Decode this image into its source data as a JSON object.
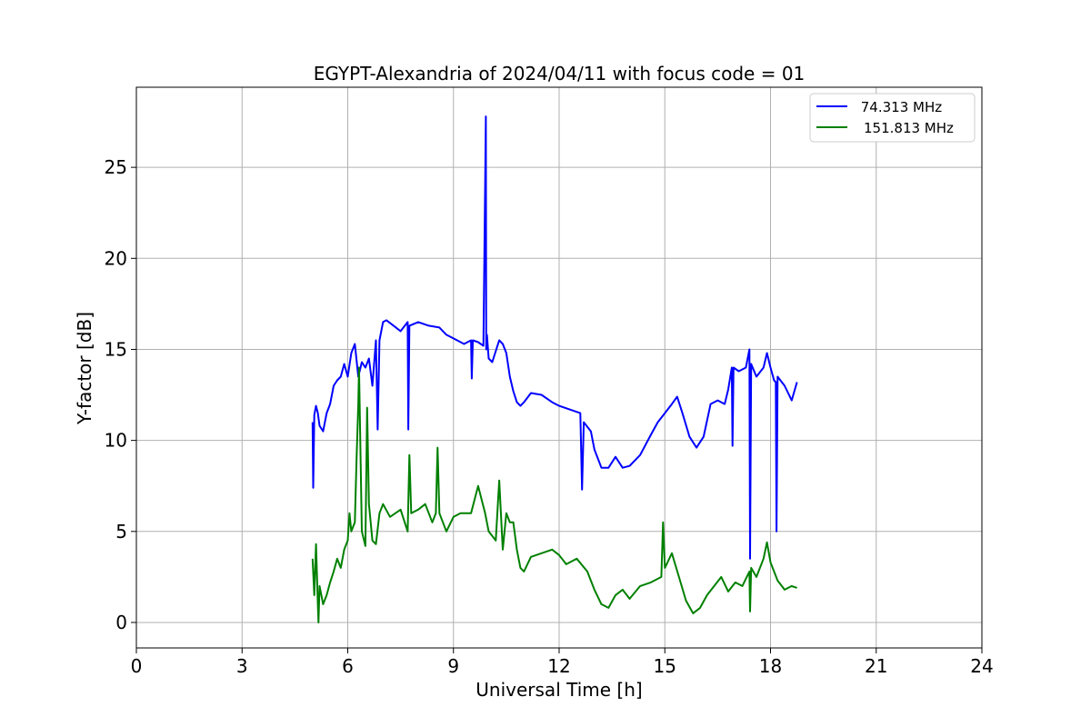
{
  "chart_data": {
    "type": "line",
    "title": "EGYPT-Alexandria of 2024/04/11 with focus code = 01",
    "xlabel": "Universal Time [h]",
    "ylabel": "Y-factor [dB]",
    "xlim": [
      0,
      24
    ],
    "ylim": [
      -1.4,
      29.4
    ],
    "xticks": [
      0,
      3,
      6,
      9,
      12,
      15,
      18,
      21,
      24
    ],
    "yticks": [
      0,
      5,
      10,
      15,
      20,
      25
    ],
    "grid": true,
    "legend_position": "top-right",
    "series": [
      {
        "name": " 74.313 MHz",
        "color": "#0000ff",
        "x": [
          5.0,
          5.02,
          5.05,
          5.1,
          5.15,
          5.2,
          5.3,
          5.4,
          5.5,
          5.6,
          5.7,
          5.8,
          5.9,
          6.0,
          6.1,
          6.2,
          6.3,
          6.4,
          6.5,
          6.6,
          6.7,
          6.8,
          6.85,
          6.9,
          7.0,
          7.1,
          7.3,
          7.5,
          7.7,
          7.72,
          7.75,
          8.0,
          8.3,
          8.6,
          8.8,
          9.0,
          9.3,
          9.5,
          9.52,
          9.55,
          9.7,
          9.85,
          9.9,
          9.92,
          9.93,
          9.95,
          10.0,
          10.1,
          10.3,
          10.4,
          10.5,
          10.6,
          10.7,
          10.8,
          10.9,
          11.0,
          11.2,
          11.5,
          11.8,
          12.0,
          12.3,
          12.6,
          12.65,
          12.7,
          12.9,
          13.0,
          13.2,
          13.4,
          13.6,
          13.8,
          14.0,
          14.3,
          14.6,
          14.8,
          15.0,
          15.2,
          15.35,
          15.5,
          15.7,
          15.9,
          16.1,
          16.3,
          16.5,
          16.7,
          16.8,
          16.9,
          16.92,
          16.95,
          17.1,
          17.3,
          17.4,
          17.42,
          17.45,
          17.6,
          17.8,
          17.9,
          18.0,
          18.1,
          18.15,
          18.17,
          18.2,
          18.4,
          18.6,
          18.75
        ],
        "y": [
          11.0,
          7.4,
          11.4,
          11.9,
          11.5,
          10.8,
          10.5,
          11.5,
          12.0,
          13.0,
          13.3,
          13.5,
          14.2,
          13.5,
          14.8,
          15.3,
          13.5,
          14.3,
          14.0,
          14.5,
          13.0,
          15.5,
          10.6,
          15.5,
          16.5,
          16.6,
          16.3,
          16.0,
          16.5,
          10.6,
          16.3,
          16.5,
          16.3,
          16.2,
          15.8,
          15.6,
          15.3,
          15.5,
          13.4,
          15.5,
          15.4,
          15.2,
          24.0,
          27.8,
          15.0,
          15.8,
          14.5,
          14.3,
          15.5,
          15.3,
          14.8,
          13.5,
          12.7,
          12.1,
          11.9,
          12.1,
          12.6,
          12.5,
          12.1,
          11.9,
          11.7,
          11.5,
          7.3,
          11.0,
          10.5,
          9.5,
          8.5,
          8.5,
          9.1,
          8.5,
          8.6,
          9.2,
          10.3,
          11.0,
          11.5,
          12.0,
          12.4,
          11.5,
          10.2,
          9.6,
          10.2,
          12.0,
          12.2,
          12.0,
          12.8,
          14.0,
          9.7,
          14.0,
          13.8,
          14.0,
          15.0,
          3.5,
          14.2,
          13.5,
          14.0,
          14.8,
          14.0,
          13.3,
          13.2,
          5.0,
          13.5,
          13.0,
          12.2,
          13.2
        ]
      },
      {
        "name": "151.813 MHz",
        "color": "#008000",
        "x": [
          5.0,
          5.05,
          5.1,
          5.15,
          5.17,
          5.2,
          5.3,
          5.4,
          5.5,
          5.6,
          5.7,
          5.8,
          5.9,
          6.0,
          6.05,
          6.1,
          6.2,
          6.25,
          6.3,
          6.32,
          6.35,
          6.4,
          6.5,
          6.55,
          6.6,
          6.7,
          6.8,
          6.9,
          7.0,
          7.2,
          7.5,
          7.7,
          7.75,
          7.8,
          8.0,
          8.2,
          8.4,
          8.5,
          8.55,
          8.6,
          8.8,
          9.0,
          9.2,
          9.5,
          9.7,
          9.9,
          10.0,
          10.2,
          10.3,
          10.4,
          10.5,
          10.6,
          10.7,
          10.8,
          10.9,
          11.0,
          11.2,
          11.5,
          11.8,
          12.0,
          12.2,
          12.5,
          12.8,
          13.0,
          13.2,
          13.4,
          13.6,
          13.8,
          14.0,
          14.3,
          14.6,
          14.9,
          14.95,
          15.0,
          15.2,
          15.4,
          15.6,
          15.8,
          16.0,
          16.2,
          16.4,
          16.6,
          16.8,
          17.0,
          17.2,
          17.4,
          17.42,
          17.45,
          17.6,
          17.8,
          17.9,
          18.0,
          18.2,
          18.4,
          18.6,
          18.75
        ],
        "y": [
          3.5,
          1.5,
          4.3,
          1.0,
          0.0,
          2.0,
          1.0,
          1.5,
          2.2,
          2.8,
          3.5,
          3.0,
          4.0,
          4.5,
          6.0,
          5.0,
          5.5,
          9.0,
          12.0,
          14.0,
          10.5,
          5.0,
          4.2,
          11.8,
          6.5,
          4.5,
          4.3,
          6.0,
          6.5,
          5.8,
          6.2,
          5.0,
          9.2,
          6.0,
          6.2,
          6.5,
          5.5,
          6.0,
          9.6,
          6.0,
          5.0,
          5.8,
          6.0,
          6.0,
          7.5,
          6.0,
          5.0,
          4.5,
          7.8,
          4.0,
          6.0,
          5.5,
          5.5,
          4.0,
          3.0,
          2.8,
          3.6,
          3.8,
          4.0,
          3.7,
          3.2,
          3.5,
          2.8,
          1.8,
          1.0,
          0.8,
          1.5,
          1.8,
          1.3,
          2.0,
          2.2,
          2.5,
          5.5,
          3.0,
          3.8,
          2.5,
          1.2,
          0.5,
          0.8,
          1.5,
          2.0,
          2.5,
          1.7,
          2.2,
          2.0,
          2.8,
          0.6,
          3.0,
          2.5,
          3.5,
          4.4,
          3.3,
          2.3,
          1.8,
          2.0,
          1.9
        ]
      }
    ]
  }
}
